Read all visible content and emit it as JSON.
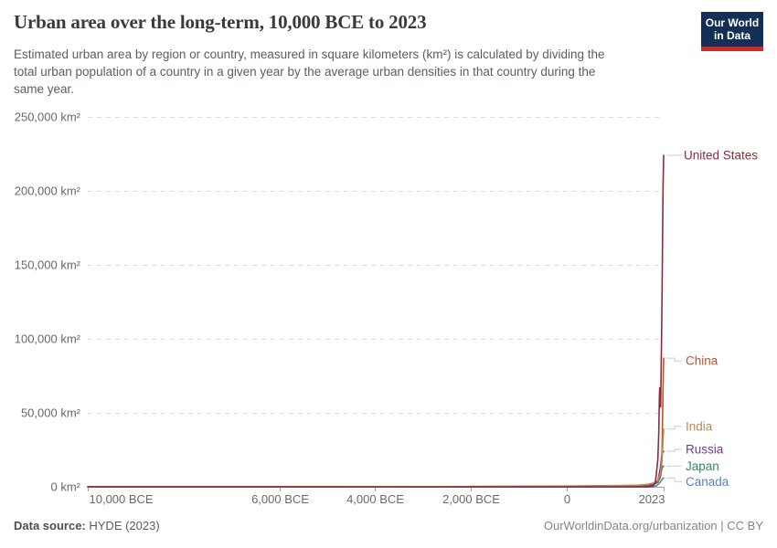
{
  "header": {
    "title": "Urban area over the long-term, 10,000 BCE to 2023",
    "subtitle_lines": [
      "Estimated urban area by region or country, measured in square kilometers (km²) is calculated by dividing the",
      "total urban population of a country in a given year by the average urban densities in that country during the",
      "same year."
    ],
    "logo": {
      "line1": "Our World",
      "line2": "in Data"
    }
  },
  "footer": {
    "source_label": "Data source:",
    "source_value": "HYDE (2023)",
    "credit": "OurWorldinData.org/urbanization | CC BY"
  },
  "colors": {
    "grid": "#dbdbdb",
    "axis": "#a3a3a3",
    "tick_label": "#686868",
    "leader": "#cccccc",
    "title": "#383a3d",
    "subtitle": "#595f63",
    "logo_bg": "#132f57",
    "logo_red": "#c82d28"
  },
  "chart_data": {
    "type": "line",
    "title": "Urban area over the long-term, 10,000 BCE to 2023",
    "xlabel": "",
    "ylabel": "km²",
    "x_domain": [
      -10000,
      2023
    ],
    "y_domain": [
      0,
      250000
    ],
    "grid": true,
    "legend_position": "right-edge-labels",
    "y_ticks": [
      {
        "value": 0,
        "label": "0 km²"
      },
      {
        "value": 50000,
        "label": "50,000 km²"
      },
      {
        "value": 100000,
        "label": "100,000 km²"
      },
      {
        "value": 150000,
        "label": "150,000 km²"
      },
      {
        "value": 200000,
        "label": "200,000 km²"
      },
      {
        "value": 250000,
        "label": "250,000 km²"
      }
    ],
    "x_ticks": [
      {
        "year": -10000,
        "label": "10,000 BCE",
        "align": "start"
      },
      {
        "year": -6000,
        "label": "6,000 BCE",
        "align": "middle"
      },
      {
        "year": -4000,
        "label": "4,000 BCE",
        "align": "middle"
      },
      {
        "year": -2000,
        "label": "2,000 BCE",
        "align": "middle"
      },
      {
        "year": 0,
        "label": "0",
        "align": "middle"
      },
      {
        "year": 2023,
        "label": "2023",
        "align": "end"
      }
    ],
    "series": [
      {
        "name": "Canada",
        "color": "#5a82b9",
        "label_dy": 4,
        "points": [
          [
            -10000,
            0
          ],
          [
            -2000,
            0
          ],
          [
            0,
            0
          ],
          [
            1000,
            0
          ],
          [
            1500,
            0
          ],
          [
            1700,
            20
          ],
          [
            1800,
            120
          ],
          [
            1850,
            400
          ],
          [
            1900,
            1500
          ],
          [
            1950,
            3000
          ],
          [
            1970,
            4000
          ],
          [
            1980,
            4500
          ],
          [
            1990,
            5000
          ],
          [
            2000,
            5500
          ],
          [
            2023,
            6000
          ]
        ]
      },
      {
        "name": "Japan",
        "color": "#2f8a68",
        "label_dy": 0,
        "points": [
          [
            -10000,
            0
          ],
          [
            -2000,
            0
          ],
          [
            0,
            20
          ],
          [
            1000,
            150
          ],
          [
            1500,
            350
          ],
          [
            1700,
            900
          ],
          [
            1800,
            1500
          ],
          [
            1900,
            3000
          ],
          [
            1950,
            6000
          ],
          [
            1970,
            9500
          ],
          [
            1980,
            11000
          ],
          [
            1990,
            12500
          ],
          [
            2000,
            13500
          ],
          [
            2023,
            14000
          ]
        ]
      },
      {
        "name": "Russia",
        "color": "#6e3c96",
        "label_dy": -2,
        "points": [
          [
            -10000,
            0
          ],
          [
            -2000,
            0
          ],
          [
            0,
            20
          ],
          [
            1000,
            80
          ],
          [
            1500,
            200
          ],
          [
            1700,
            600
          ],
          [
            1800,
            1500
          ],
          [
            1900,
            4000
          ],
          [
            1950,
            12000
          ],
          [
            1970,
            17000
          ],
          [
            1980,
            20000
          ],
          [
            1990,
            22500
          ],
          [
            2000,
            23000
          ],
          [
            2010,
            23500
          ],
          [
            2023,
            24000
          ]
        ]
      },
      {
        "name": "China",
        "color": "#c3502d",
        "label_dy": 3,
        "points": [
          [
            -10000,
            0
          ],
          [
            -6000,
            30
          ],
          [
            -4000,
            80
          ],
          [
            -2000,
            150
          ],
          [
            -1000,
            250
          ],
          [
            0,
            450
          ],
          [
            500,
            550
          ],
          [
            1000,
            700
          ],
          [
            1500,
            900
          ],
          [
            1700,
            1400
          ],
          [
            1800,
            2500
          ],
          [
            1900,
            4000
          ],
          [
            1950,
            7000
          ],
          [
            1970,
            10000
          ],
          [
            1980,
            14000
          ],
          [
            1990,
            25000
          ],
          [
            2000,
            45000
          ],
          [
            2010,
            66000
          ],
          [
            2023,
            87000
          ]
        ]
      },
      {
        "name": "India",
        "color": "#b98c55",
        "label_dy": -3,
        "points": [
          [
            -10000,
            0
          ],
          [
            -6000,
            20
          ],
          [
            -4000,
            60
          ],
          [
            -2500,
            150
          ],
          [
            -2000,
            250
          ],
          [
            -1000,
            350
          ],
          [
            0,
            500
          ],
          [
            1000,
            800
          ],
          [
            1500,
            1100
          ],
          [
            1700,
            1700
          ],
          [
            1800,
            2500
          ],
          [
            1900,
            4500
          ],
          [
            1950,
            8500
          ],
          [
            1970,
            12000
          ],
          [
            1980,
            15000
          ],
          [
            1990,
            19000
          ],
          [
            2000,
            25000
          ],
          [
            2010,
            31000
          ],
          [
            2023,
            39000
          ]
        ]
      },
      {
        "name": "United States",
        "color": "#8c2d37",
        "label_dy": 0,
        "points": [
          [
            -10000,
            0
          ],
          [
            -2000,
            0
          ],
          [
            0,
            0
          ],
          [
            1000,
            0
          ],
          [
            1500,
            0
          ],
          [
            1700,
            50
          ],
          [
            1800,
            500
          ],
          [
            1850,
            2500
          ],
          [
            1900,
            18000
          ],
          [
            1920,
            35000
          ],
          [
            1935,
            62000
          ],
          [
            1940,
            67000
          ],
          [
            1950,
            60000
          ],
          [
            1960,
            54000
          ],
          [
            1970,
            76000
          ],
          [
            1980,
            100000
          ],
          [
            1990,
            133000
          ],
          [
            2000,
            167000
          ],
          [
            2010,
            200000
          ],
          [
            2023,
            224000
          ]
        ]
      }
    ]
  }
}
